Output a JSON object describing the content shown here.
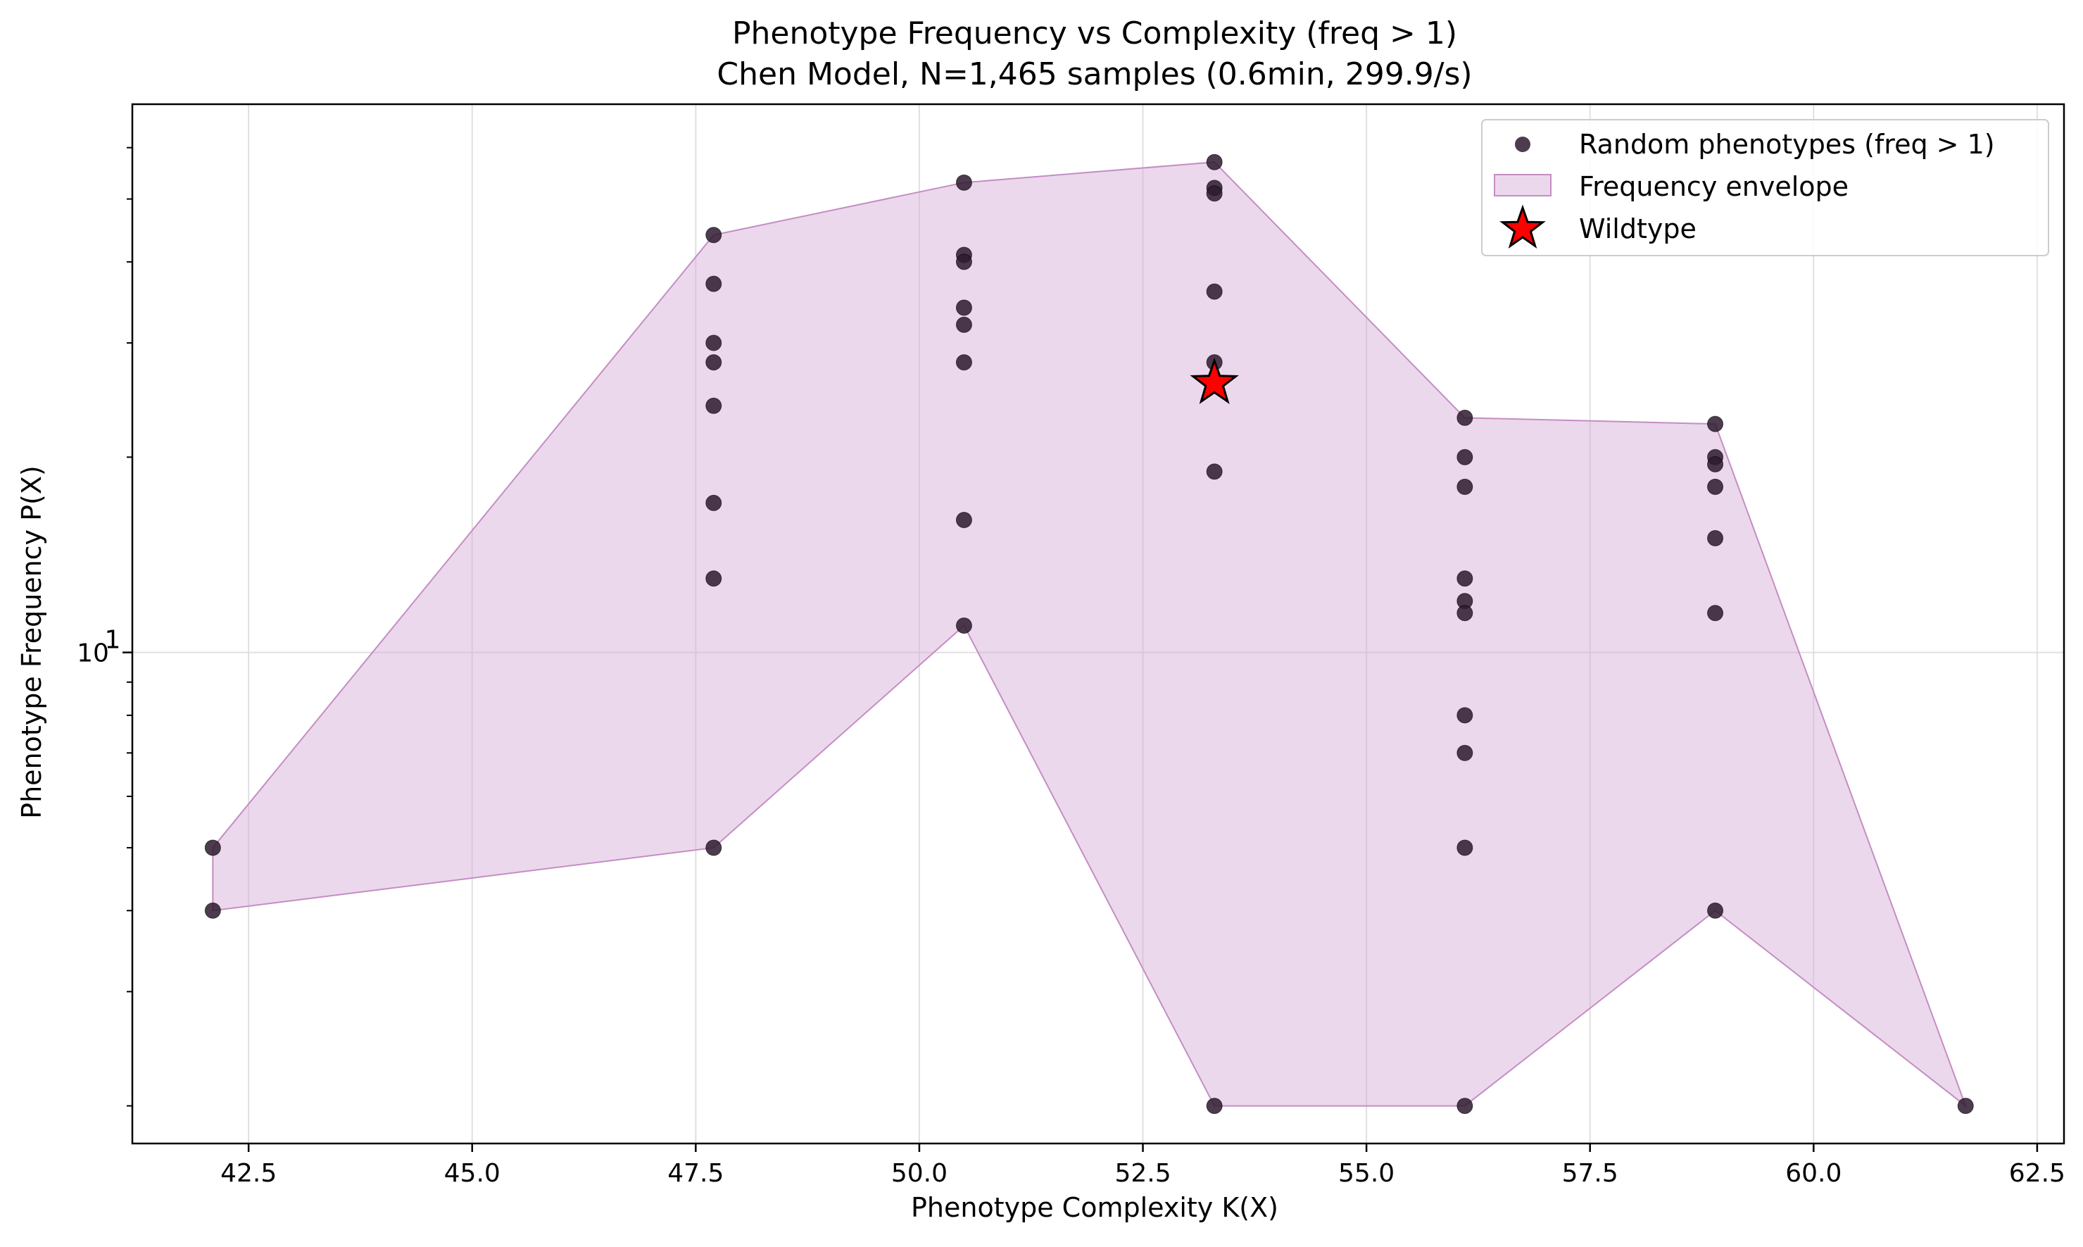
{
  "chart_data": {
    "type": "scatter",
    "title": "Phenotype Frequency vs Complexity (freq > 1)",
    "subtitle": "Chen Model, N=1,465 samples (0.6min, 299.9/s)",
    "xlabel": "Phenotype Complexity K(X)",
    "ylabel": "Phenotype Frequency P(X)",
    "xlim": [
      41.2,
      62.8
    ],
    "ylim": [
      1.75,
      70
    ],
    "yscale": "log",
    "grid": true,
    "legend_position": "top-right",
    "x_ticks": [
      42.5,
      45.0,
      47.5,
      50.0,
      52.5,
      55.0,
      57.5,
      60.0,
      62.5
    ],
    "x_tick_labels": [
      "42.5",
      "45.0",
      "47.5",
      "50.0",
      "52.5",
      "55.0",
      "57.5",
      "60.0",
      "62.5"
    ],
    "y_major_ticks": [
      10
    ],
    "y_major_tick_base": "10",
    "y_major_tick_exp": "1",
    "y_minor_ticks": [
      2,
      3,
      4,
      5,
      6,
      7,
      8,
      9,
      20,
      30,
      40,
      50,
      60
    ],
    "colors": {
      "points": "#2e1a2e",
      "envelope_fill": "#d4a9d4",
      "envelope_edge": "#c48dc4",
      "star": "#ff0000",
      "grid": "#e0e0e0"
    },
    "legend": [
      {
        "label": "Random phenotypes (freq > 1)",
        "marker": "circle"
      },
      {
        "label": "Frequency envelope",
        "marker": "patch"
      },
      {
        "label": "Wildtype",
        "marker": "star"
      }
    ],
    "series": [
      {
        "name": "Random phenotypes (freq > 1)",
        "points": [
          [
            42.1,
            5
          ],
          [
            42.1,
            4
          ],
          [
            47.7,
            44
          ],
          [
            47.7,
            37
          ],
          [
            47.7,
            30
          ],
          [
            47.7,
            28
          ],
          [
            47.7,
            24
          ],
          [
            47.7,
            17
          ],
          [
            47.7,
            13
          ],
          [
            47.7,
            5
          ],
          [
            50.5,
            53
          ],
          [
            50.5,
            41
          ],
          [
            50.5,
            40
          ],
          [
            50.5,
            34
          ],
          [
            50.5,
            32
          ],
          [
            50.5,
            28
          ],
          [
            50.5,
            16
          ],
          [
            50.5,
            11
          ],
          [
            53.3,
            57
          ],
          [
            53.3,
            52
          ],
          [
            53.3,
            51
          ],
          [
            53.3,
            36
          ],
          [
            53.3,
            28
          ],
          [
            53.3,
            26
          ],
          [
            53.3,
            19
          ],
          [
            53.3,
            2
          ],
          [
            56.1,
            23
          ],
          [
            56.1,
            20
          ],
          [
            56.1,
            18
          ],
          [
            56.1,
            13
          ],
          [
            56.1,
            12
          ],
          [
            56.1,
            11.5
          ],
          [
            56.1,
            8
          ],
          [
            56.1,
            7
          ],
          [
            56.1,
            5
          ],
          [
            56.1,
            2
          ],
          [
            58.9,
            22.5
          ],
          [
            58.9,
            20
          ],
          [
            58.9,
            19.5
          ],
          [
            58.9,
            18
          ],
          [
            58.9,
            15
          ],
          [
            58.9,
            11.5
          ],
          [
            58.9,
            4
          ],
          [
            61.7,
            2
          ]
        ]
      },
      {
        "name": "Frequency envelope",
        "upper": [
          [
            42.1,
            5
          ],
          [
            47.7,
            44
          ],
          [
            50.5,
            53
          ],
          [
            53.3,
            57
          ],
          [
            56.1,
            23
          ],
          [
            58.9,
            22.5
          ],
          [
            61.7,
            2
          ]
        ],
        "lower": [
          [
            42.1,
            4
          ],
          [
            47.7,
            5
          ],
          [
            50.5,
            11
          ],
          [
            53.3,
            2
          ],
          [
            56.1,
            2
          ],
          [
            58.9,
            4
          ],
          [
            61.7,
            2
          ]
        ]
      },
      {
        "name": "Wildtype",
        "points": [
          [
            53.3,
            26
          ]
        ]
      }
    ]
  }
}
